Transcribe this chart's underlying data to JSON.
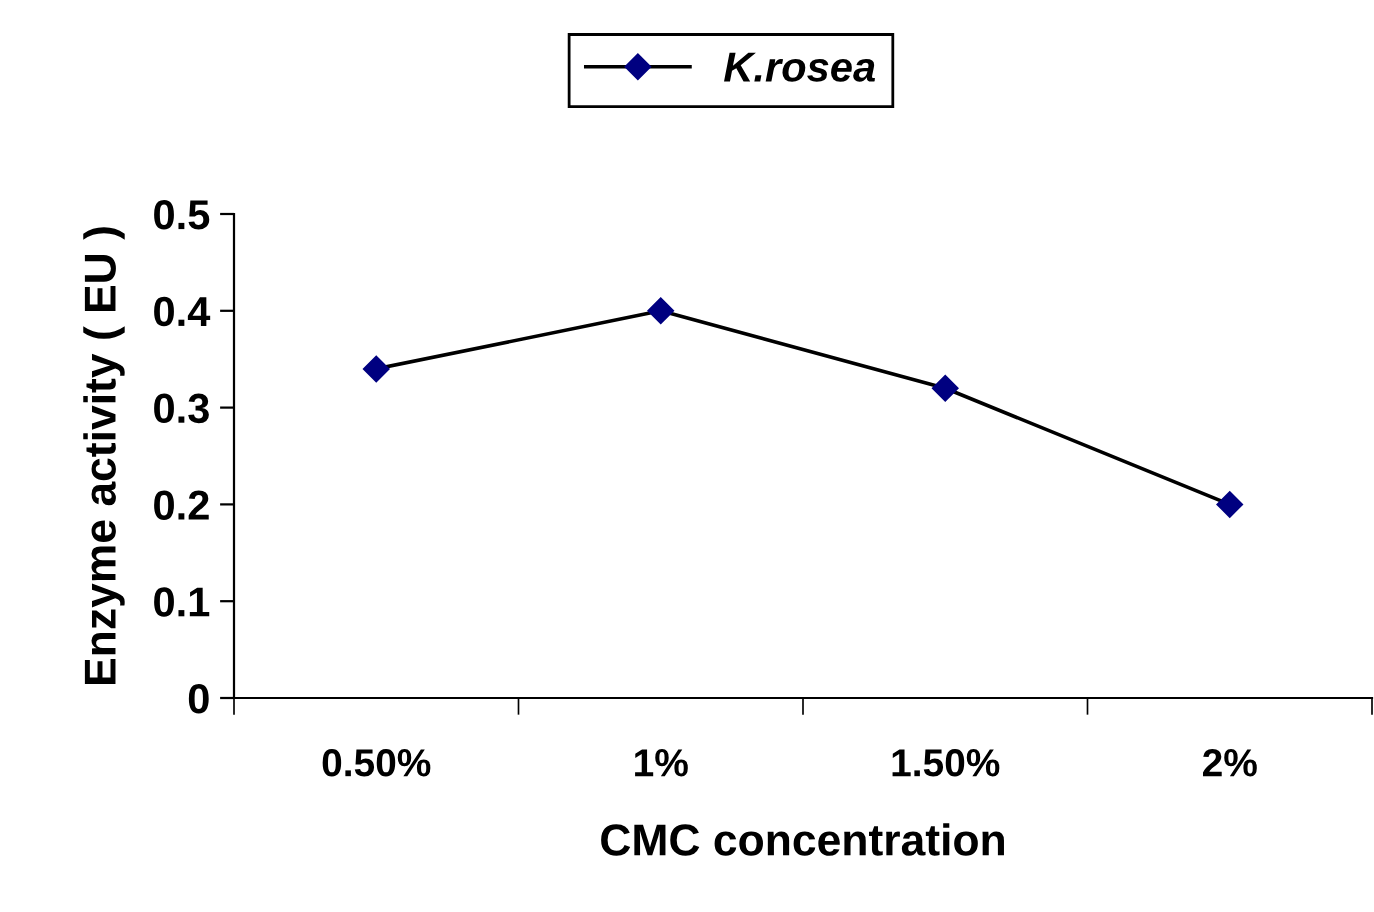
{
  "chart_data": {
    "type": "line",
    "xlabel": "CMC concentration",
    "ylabel": "Enzyme activity ( EU )",
    "categories": [
      "0.50%",
      "1%",
      "1.50%",
      "2%"
    ],
    "series": [
      {
        "name": "K.rosea",
        "color": "#000080",
        "values": [
          0.34,
          0.4,
          0.32,
          0.2
        ]
      }
    ],
    "ylim": [
      0,
      0.5
    ],
    "yticks": [
      0,
      0.1,
      0.2,
      0.3,
      0.4,
      0.5
    ],
    "grid": false,
    "legend": "top",
    "marker": "diamond",
    "line_style": "solid"
  }
}
